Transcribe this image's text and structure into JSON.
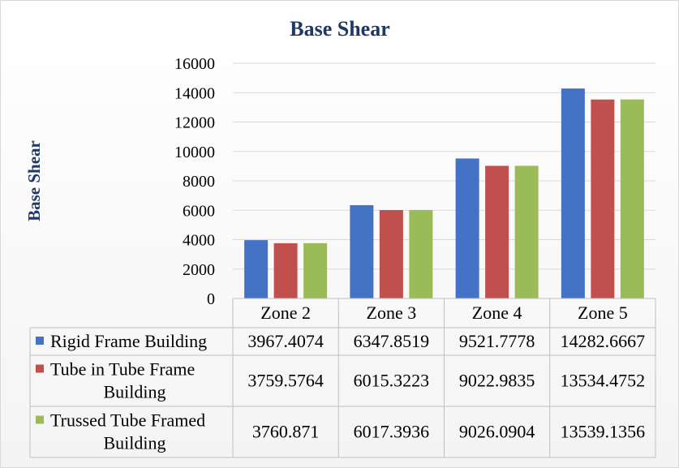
{
  "chart_data": {
    "type": "bar",
    "title": "Base Shear",
    "ylabel": "Base Shear",
    "xlabel": "",
    "ylim": [
      0,
      16000
    ],
    "yticks": [
      0,
      2000,
      4000,
      6000,
      8000,
      10000,
      12000,
      14000,
      16000
    ],
    "grid": true,
    "legend": "data-table",
    "categories": [
      "Zone 2",
      "Zone 3",
      "Zone 4",
      "Zone 5"
    ],
    "series": [
      {
        "name_lines": [
          "Rigid Frame Building"
        ],
        "color": "#4472c4",
        "values": [
          3967.4074,
          6347.8519,
          9521.7778,
          14282.6667
        ],
        "labels": [
          "3967.4074",
          "6347.8519",
          "9521.7778",
          "14282.6667"
        ]
      },
      {
        "name_lines": [
          "Tube in Tube Frame",
          "Building"
        ],
        "color": "#c0504d",
        "values": [
          3759.5764,
          6015.3223,
          9022.9835,
          13534.4752
        ],
        "labels": [
          "3759.5764",
          "6015.3223",
          "9022.9835",
          "13534.4752"
        ]
      },
      {
        "name_lines": [
          "Trussed Tube Framed",
          "Building"
        ],
        "color": "#9bbb59",
        "values": [
          3760.871,
          6017.3936,
          9026.0904,
          13539.1356
        ],
        "labels": [
          "3760.871",
          "6017.3936",
          "9026.0904",
          "13539.1356"
        ]
      }
    ]
  }
}
